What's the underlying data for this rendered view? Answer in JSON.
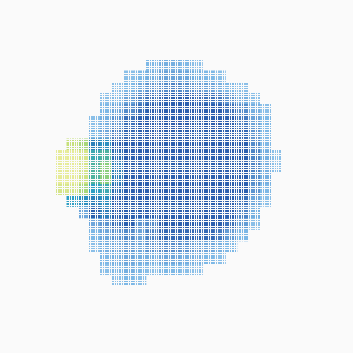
{
  "chart_data": {
    "type": "heatmap",
    "tick_labels": false,
    "color_range": [
      0,
      1
    ],
    "cells": [
      [
        null,
        null,
        null,
        null,
        null,
        null,
        null,
        null,
        0.1,
        0.12,
        0.12,
        0.1,
        0.08,
        null,
        null,
        null,
        null,
        null,
        null,
        null
      ],
      [
        null,
        null,
        null,
        null,
        null,
        null,
        0.08,
        0.1,
        0.12,
        0.15,
        0.15,
        0.14,
        0.12,
        0.1,
        0.08,
        null,
        null,
        null,
        null,
        null
      ],
      [
        null,
        null,
        null,
        null,
        null,
        0.08,
        0.1,
        0.14,
        0.18,
        0.2,
        0.22,
        0.2,
        0.18,
        0.15,
        0.12,
        0.1,
        0.08,
        null,
        null,
        null
      ],
      [
        null,
        null,
        null,
        null,
        0.08,
        0.1,
        0.15,
        0.22,
        0.26,
        0.28,
        0.3,
        0.3,
        0.28,
        0.26,
        0.24,
        0.18,
        0.12,
        0.08,
        null,
        null
      ],
      [
        null,
        null,
        null,
        null,
        0.1,
        0.14,
        0.2,
        0.26,
        0.3,
        0.3,
        0.3,
        0.3,
        0.3,
        0.3,
        0.3,
        0.26,
        0.2,
        0.12,
        0.08,
        null
      ],
      [
        null,
        null,
        null,
        0.08,
        0.12,
        0.18,
        0.26,
        0.3,
        0.3,
        0.3,
        0.3,
        0.3,
        0.3,
        0.3,
        0.3,
        0.3,
        0.24,
        0.15,
        0.1,
        null
      ],
      [
        null,
        null,
        null,
        0.1,
        0.14,
        0.22,
        0.28,
        0.3,
        0.3,
        0.3,
        0.3,
        0.3,
        0.3,
        0.3,
        0.3,
        0.3,
        0.28,
        0.18,
        0.1,
        null
      ],
      [
        null,
        0.85,
        0.8,
        0.4,
        0.45,
        0.3,
        0.3,
        0.3,
        0.3,
        0.3,
        0.3,
        0.3,
        0.3,
        0.3,
        0.3,
        0.3,
        0.3,
        0.2,
        0.1,
        null
      ],
      [
        0.95,
        0.95,
        0.9,
        0.55,
        0.6,
        0.35,
        0.3,
        0.3,
        0.3,
        0.3,
        0.3,
        0.3,
        0.3,
        0.3,
        0.3,
        0.3,
        0.3,
        0.22,
        0.12,
        0.08
      ],
      [
        0.95,
        0.95,
        0.9,
        0.6,
        0.75,
        0.4,
        0.3,
        0.3,
        0.3,
        0.3,
        0.3,
        0.3,
        0.3,
        0.3,
        0.3,
        0.3,
        0.3,
        0.22,
        0.12,
        0.08
      ],
      [
        0.95,
        0.95,
        0.88,
        0.6,
        0.75,
        0.4,
        0.3,
        0.3,
        0.3,
        0.3,
        0.3,
        0.3,
        0.3,
        0.3,
        0.3,
        0.3,
        0.3,
        0.2,
        0.12,
        null
      ],
      [
        0.9,
        0.9,
        0.8,
        0.5,
        0.55,
        0.35,
        0.3,
        0.3,
        0.3,
        0.3,
        0.3,
        0.3,
        0.3,
        0.3,
        0.3,
        0.3,
        0.3,
        0.18,
        0.1,
        null
      ],
      [
        null,
        0.5,
        0.45,
        0.4,
        0.45,
        0.3,
        0.3,
        0.3,
        0.3,
        0.3,
        0.3,
        0.3,
        0.3,
        0.3,
        0.3,
        0.3,
        0.26,
        0.14,
        0.08,
        null
      ],
      [
        null,
        null,
        0.14,
        0.3,
        0.4,
        0.3,
        0.3,
        0.3,
        0.3,
        0.3,
        0.3,
        0.3,
        0.3,
        0.3,
        0.3,
        0.3,
        0.22,
        0.12,
        null,
        null
      ],
      [
        null,
        null,
        null,
        0.14,
        0.18,
        0.26,
        0.3,
        0.18,
        0.2,
        0.3,
        0.3,
        0.3,
        0.3,
        0.3,
        0.3,
        0.26,
        0.16,
        0.08,
        null,
        null
      ],
      [
        null,
        null,
        null,
        0.1,
        0.14,
        0.18,
        0.2,
        0.15,
        0.22,
        0.28,
        0.28,
        0.28,
        0.28,
        0.28,
        0.24,
        0.16,
        0.1,
        null,
        null,
        null
      ],
      [
        null,
        null,
        null,
        0.08,
        0.12,
        0.14,
        0.16,
        0.14,
        0.18,
        0.2,
        0.2,
        0.18,
        0.16,
        0.14,
        0.12,
        0.1,
        null,
        null,
        null,
        null
      ],
      [
        null,
        null,
        null,
        null,
        0.1,
        0.12,
        0.14,
        0.12,
        0.12,
        0.14,
        0.14,
        0.12,
        0.12,
        0.1,
        0.08,
        null,
        null,
        null,
        null,
        null
      ],
      [
        null,
        null,
        null,
        null,
        0.08,
        0.1,
        0.12,
        0.1,
        0.08,
        0.1,
        0.1,
        0.08,
        0.08,
        null,
        null,
        null,
        null,
        null,
        null,
        null
      ],
      [
        null,
        null,
        null,
        null,
        null,
        0.08,
        0.1,
        0.08,
        null,
        null,
        null,
        null,
        null,
        null,
        null,
        null,
        null,
        null,
        null,
        null
      ]
    ]
  }
}
